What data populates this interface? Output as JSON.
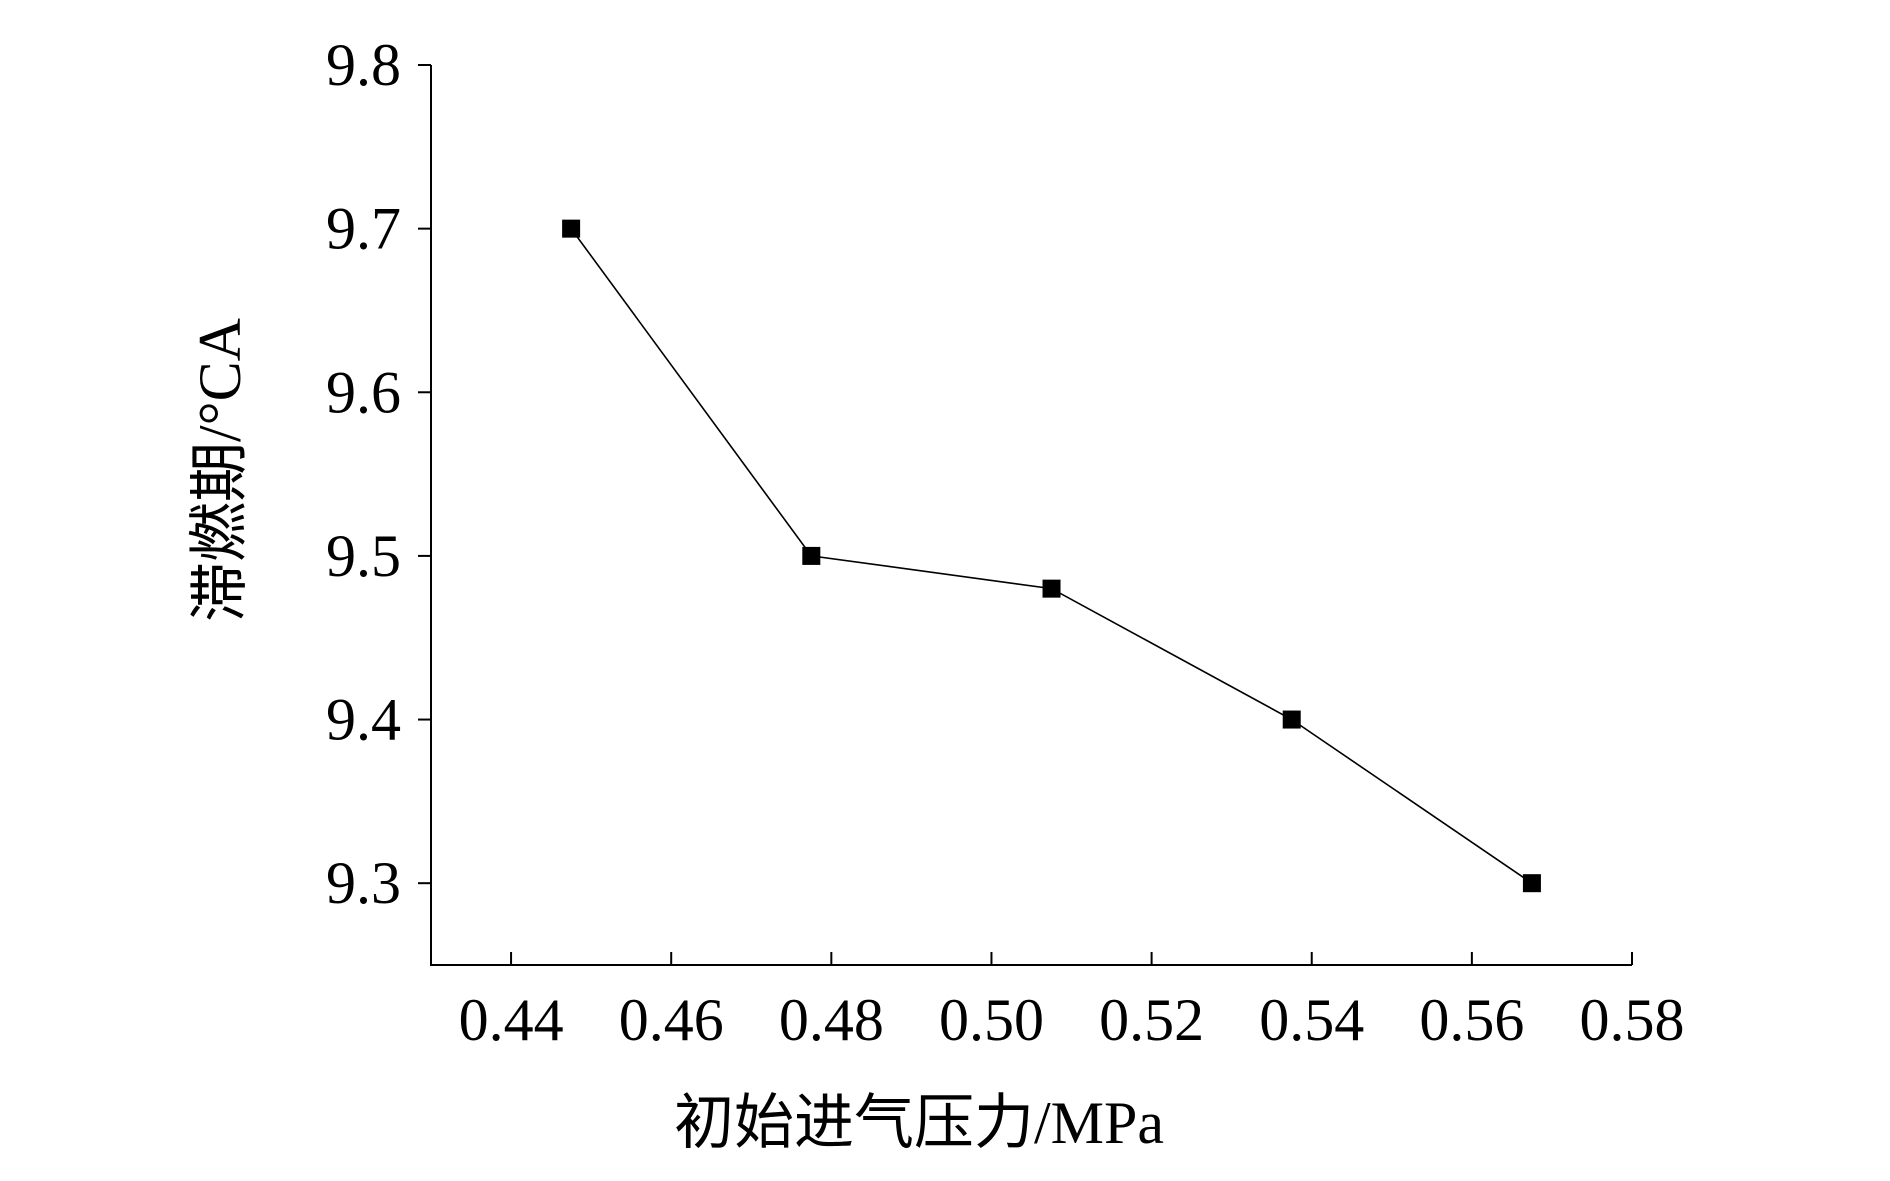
{
  "chart_data": {
    "type": "line",
    "title": "",
    "xlabel": "初始进气压力/MPa",
    "ylabel": "滞燃期/°CA",
    "x_ticks": [
      "0.44",
      "0.46",
      "0.48",
      "0.50",
      "0.52",
      "0.54",
      "0.56",
      "0.58"
    ],
    "y_ticks": [
      "9.3",
      "9.4",
      "9.5",
      "9.6",
      "9.7",
      "9.8"
    ],
    "xlim": [
      0.43,
      0.58
    ],
    "ylim": [
      9.25,
      9.8
    ],
    "grid": false,
    "series": [
      {
        "marker": "square",
        "color": "#000000",
        "x": [
          0.4475,
          0.4775,
          0.5075,
          0.5375,
          0.5675
        ],
        "y": [
          9.7,
          9.5,
          9.48,
          9.4,
          9.3
        ]
      }
    ]
  }
}
